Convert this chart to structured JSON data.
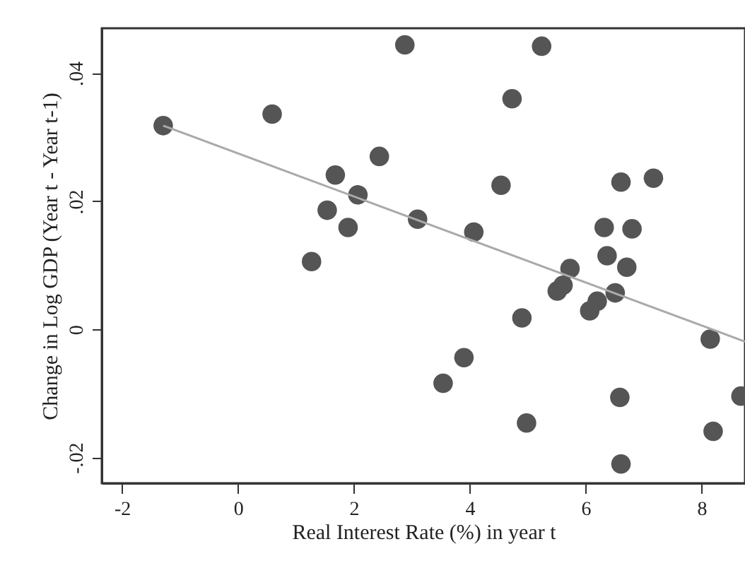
{
  "chart_data": {
    "type": "scatter",
    "xlabel": "Real Interest Rate (%) in year t",
    "ylabel": "Change in Log GDP (Year t - Year t-1)",
    "xlim": [
      -2.35,
      8.75
    ],
    "ylim": [
      -0.024,
      0.047
    ],
    "xticks": [
      -2,
      0,
      2,
      4,
      6,
      8
    ],
    "yticks": [
      {
        "value": -0.02,
        "label": "-.02"
      },
      0,
      {
        "value": 0.02,
        "label": ".02"
      },
      {
        "value": 0.04,
        "label": ".04"
      }
    ],
    "grid": false,
    "series": [
      {
        "marker": "circle",
        "color": "#555555",
        "x": [
          -1.29,
          0.59,
          2.88,
          2.44,
          1.68,
          2.07,
          1.54,
          1.9,
          1.27,
          3.1,
          5.24,
          4.73,
          4.54,
          4.07,
          6.61,
          7.17,
          6.32,
          6.8,
          6.37,
          6.71,
          5.73,
          5.61,
          5.51,
          6.2,
          6.07,
          6.51,
          4.9,
          8.15,
          3.9,
          3.54,
          6.59,
          8.68,
          4.98,
          8.2,
          6.61
        ],
        "values": [
          0.0318,
          0.0336,
          0.0444,
          0.027,
          0.0241,
          0.021,
          0.0186,
          0.0159,
          0.0106,
          0.0172,
          0.0442,
          0.036,
          0.0225,
          0.0152,
          0.023,
          0.0236,
          0.0159,
          0.0157,
          0.0115,
          0.0097,
          0.0095,
          0.0069,
          0.006,
          0.0044,
          0.0029,
          0.0057,
          0.0018,
          -0.0015,
          -0.0044,
          -0.0084,
          -0.0106,
          -0.0104,
          -0.0146,
          -0.0159,
          -0.021
        ]
      },
      {
        "type": "line",
        "marker": "none",
        "color": "#aaaaaa",
        "x": [
          -1.29,
          8.75
        ],
        "values": [
          0.0318,
          -0.0019
        ]
      }
    ]
  }
}
